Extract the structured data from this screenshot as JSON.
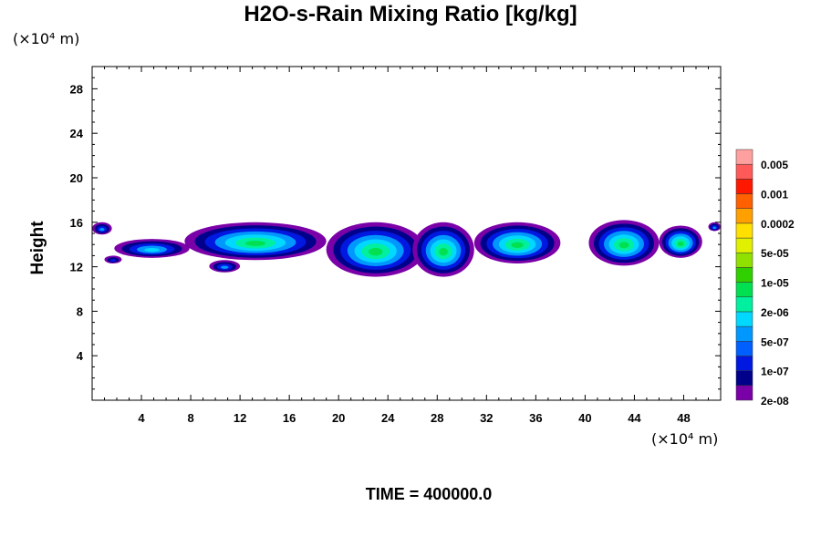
{
  "chart_data": {
    "type": "contour",
    "title": "H2O-s-Rain Mixing Ratio [kg/kg]",
    "ylabel": "Height",
    "x_unit": "(×10⁴ m)",
    "y_unit": "(×10⁴ m)",
    "x_ticks": [
      4,
      8,
      12,
      16,
      20,
      24,
      28,
      32,
      36,
      40,
      44,
      48
    ],
    "y_ticks": [
      4,
      8,
      12,
      16,
      20,
      24,
      28
    ],
    "xlim": [
      0,
      51
    ],
    "ylim": [
      0,
      30
    ],
    "time_label": "TIME = 400000.0",
    "colorbar": {
      "labels": [
        "0.005",
        "0.001",
        "0.0002",
        "5e-05",
        "1e-05",
        "2e-06",
        "5e-07",
        "1e-07",
        "2e-08"
      ],
      "colors": [
        "#7a00a8",
        "#00008a",
        "#0018e0",
        "#0060ff",
        "#0098ff",
        "#00d8ff",
        "#00f0a0",
        "#00e050",
        "#30d000",
        "#90e000",
        "#e0f000",
        "#ffe000",
        "#ffa000",
        "#ff6000",
        "#ff1800",
        "#ff5a5a",
        "#ffa0a0"
      ]
    },
    "cloud_regions": [
      {
        "x": [
          0,
          1.6
        ],
        "y": [
          14.9,
          16
        ]
      },
      {
        "x": [
          1,
          2.4
        ],
        "y": [
          12.3,
          13
        ]
      },
      {
        "x": [
          1.8,
          7.9
        ],
        "y": [
          12.8,
          14.5
        ]
      },
      {
        "x": [
          9.5,
          12
        ],
        "y": [
          11.5,
          12.6
        ]
      },
      {
        "x": [
          7.5,
          19
        ],
        "y": [
          12.6,
          16
        ]
      },
      {
        "x": [
          19,
          27
        ],
        "y": [
          11.1,
          16
        ]
      },
      {
        "x": [
          26,
          31
        ],
        "y": [
          11.1,
          16
        ]
      },
      {
        "x": [
          31,
          38
        ],
        "y": [
          12.3,
          16
        ]
      },
      {
        "x": [
          40.3,
          46
        ],
        "y": [
          12.1,
          16.2
        ]
      },
      {
        "x": [
          46,
          49.5
        ],
        "y": [
          12.8,
          15.7
        ]
      },
      {
        "x": [
          50,
          51
        ],
        "y": [
          15.2,
          16
        ]
      }
    ]
  }
}
